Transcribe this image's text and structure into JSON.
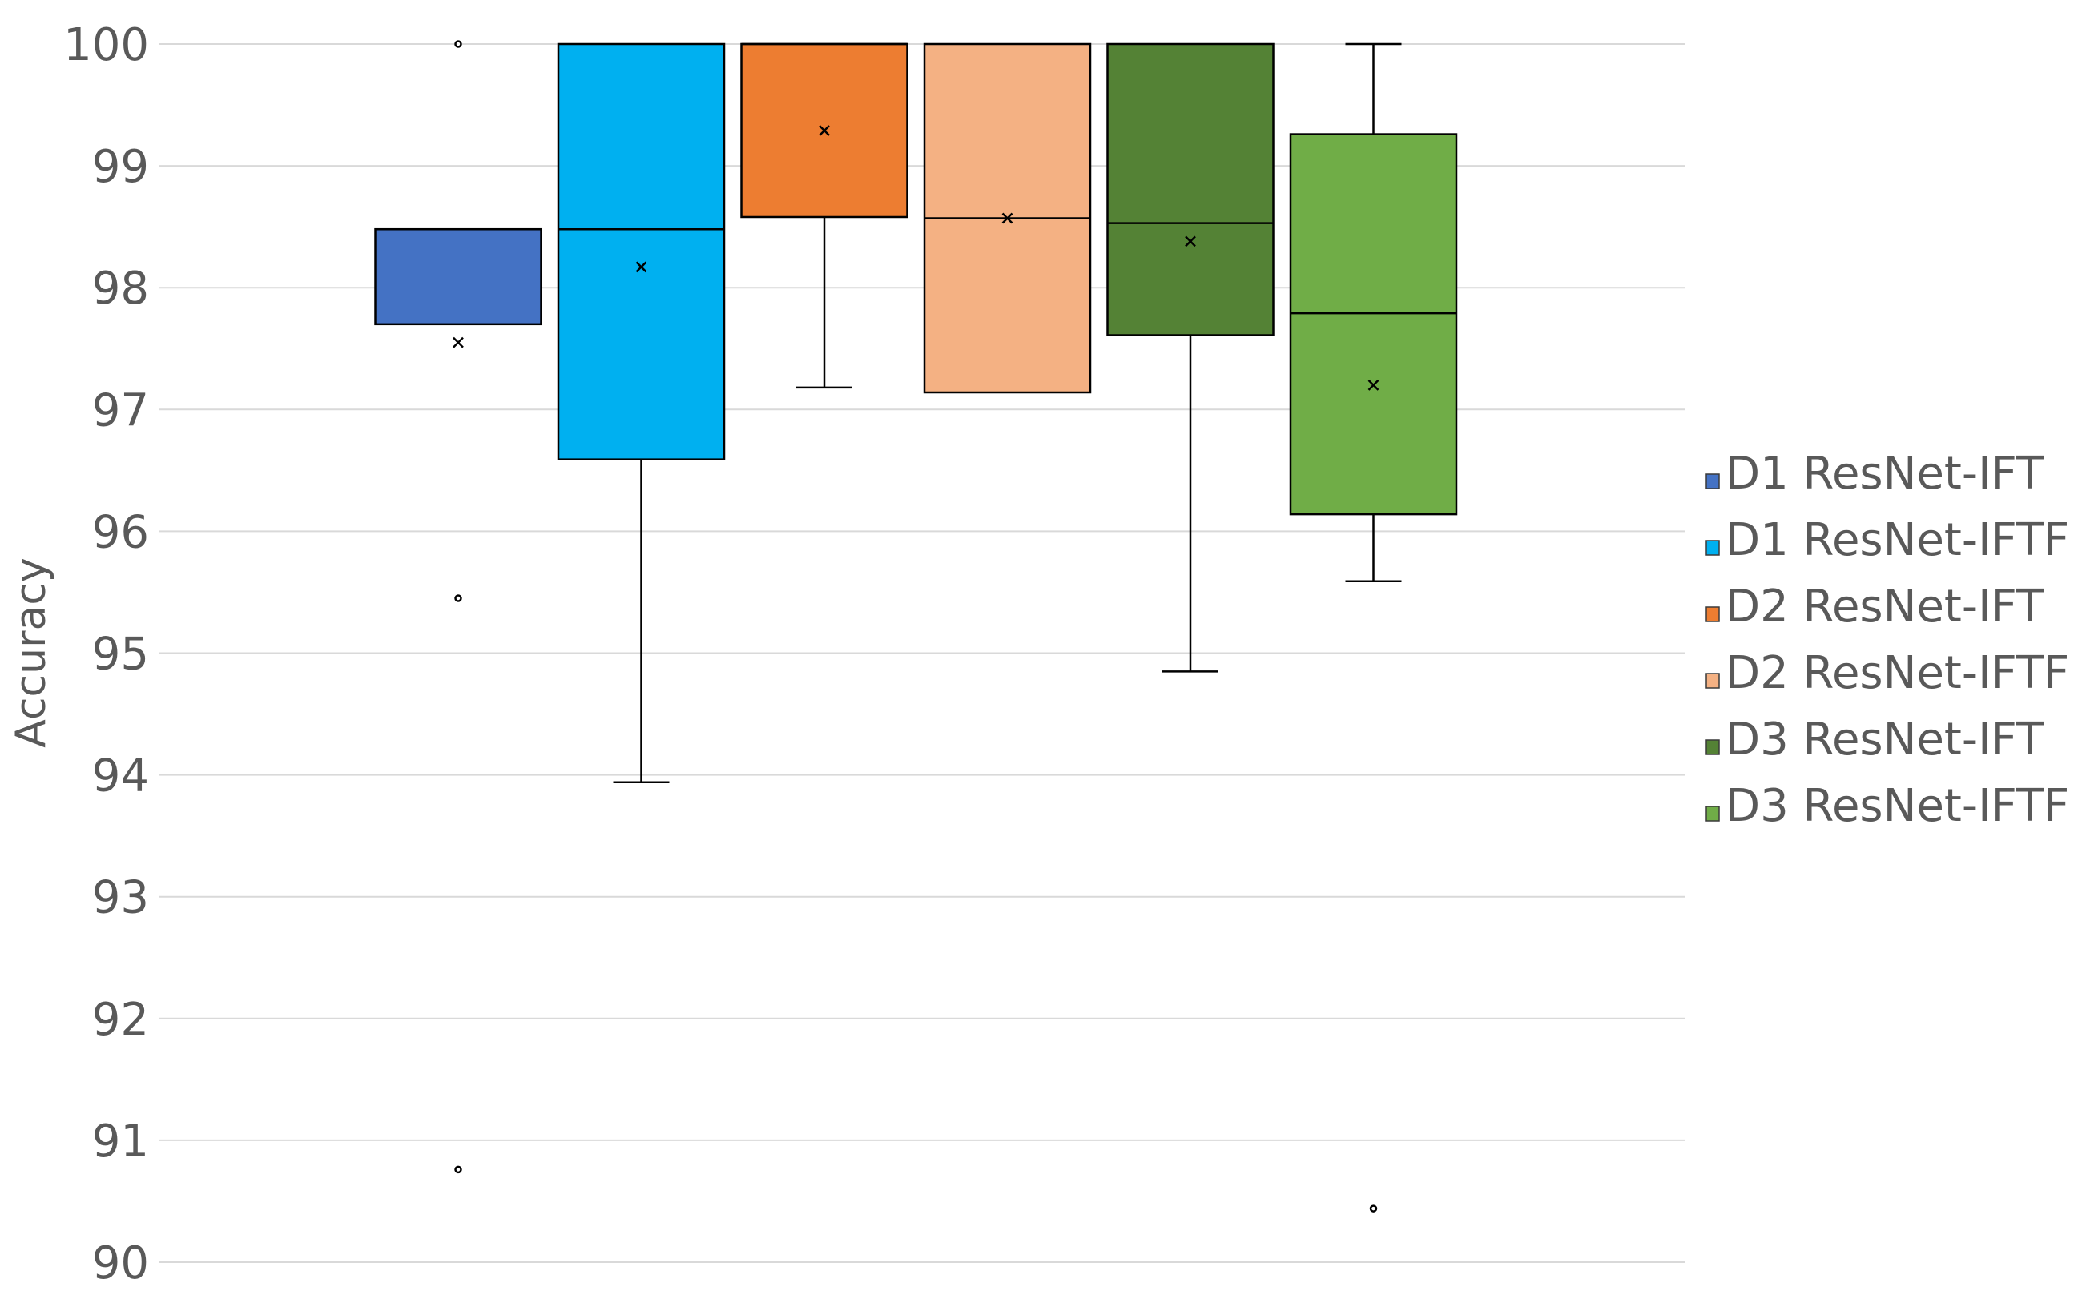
{
  "chart_data": {
    "type": "box",
    "title": "",
    "xlabel": "",
    "ylabel": "Accuracy",
    "ylim": [
      90,
      100
    ],
    "yticks": [
      "90",
      "91",
      "92",
      "93",
      "94",
      "95",
      "96",
      "97",
      "98",
      "99",
      "100"
    ],
    "grid": true,
    "legend_position": "right",
    "series": [
      {
        "name": "D1 ResNet-IFT",
        "color": "#4472C4",
        "min": 97.7,
        "q1": 97.7,
        "median": 98.48,
        "q3": 98.48,
        "max": 98.48,
        "mean": 97.55,
        "outliers": [
          100,
          95.45,
          90.76
        ]
      },
      {
        "name": "D1 ResNet-IFTF",
        "color": "#00B0F0",
        "min": 93.94,
        "q1": 96.59,
        "median": 98.48,
        "q3": 100,
        "max": 100,
        "mean": 98.17,
        "outliers": []
      },
      {
        "name": "D2 ResNet-IFT",
        "color": "#ED7D31",
        "min": 97.18,
        "q1": 98.58,
        "median": 100,
        "q3": 100,
        "max": 100,
        "mean": 99.29,
        "outliers": []
      },
      {
        "name": "D2 ResNet-IFTF",
        "color": "#F4B183",
        "min": 97.14,
        "q1": 97.14,
        "median": 98.57,
        "q3": 100,
        "max": 100,
        "mean": 98.57,
        "outliers": []
      },
      {
        "name": "D3 ResNet-IFT",
        "color": "#548235",
        "min": 94.85,
        "q1": 97.61,
        "median": 98.53,
        "q3": 100,
        "max": 100,
        "mean": 98.38,
        "outliers": []
      },
      {
        "name": "D3 ResNet-IFTF",
        "color": "#70AD47",
        "min": 95.59,
        "q1": 96.14,
        "median": 97.79,
        "q3": 99.26,
        "max": 100,
        "mean": 97.2,
        "outliers": [
          90.44
        ]
      }
    ]
  }
}
